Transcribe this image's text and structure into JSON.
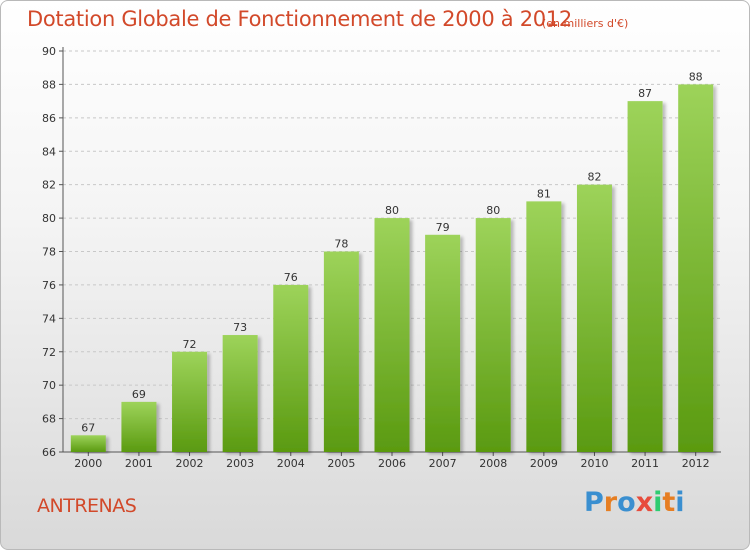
{
  "title": "Dotation Globale de Fonctionnement de 2000 à 2012",
  "unit_note": "(en milliers d'€)",
  "commune": "ANTRENAS",
  "logo": {
    "text": "Proxiti",
    "colors": [
      "#3a8fd0",
      "#e67e22",
      "#3a8fd0",
      "#e74c3c",
      "#2ecc71",
      "#e67e22",
      "#3a8fd0"
    ]
  },
  "colors": {
    "bar_light": "#9dd35a",
    "bar_dark": "#5a9a10",
    "title": "#d2492a"
  },
  "chart_data": {
    "type": "bar",
    "categories": [
      "2000",
      "2001",
      "2002",
      "2003",
      "2004",
      "2005",
      "2006",
      "2007",
      "2008",
      "2009",
      "2010",
      "2011",
      "2012"
    ],
    "values": [
      67,
      69,
      72,
      73,
      76,
      78,
      80,
      79,
      80,
      81,
      82,
      87,
      88
    ],
    "ylim": [
      66,
      90
    ],
    "yticks": [
      66,
      68,
      70,
      72,
      74,
      76,
      78,
      80,
      82,
      84,
      86,
      88,
      90
    ],
    "grid": true,
    "legend": "none"
  }
}
